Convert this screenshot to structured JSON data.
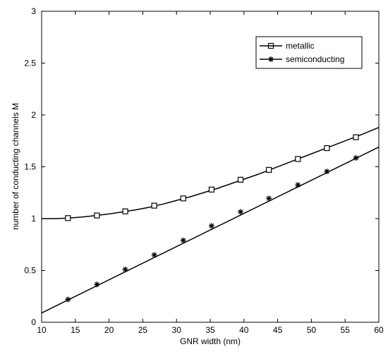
{
  "chart_data": {
    "type": "line",
    "title": "",
    "xlabel": "GNR width (nm)",
    "ylabel": "number of conducting channels  M",
    "xlim": [
      10,
      60
    ],
    "ylim": [
      0,
      3
    ],
    "xticks": [
      10,
      15,
      20,
      25,
      30,
      35,
      40,
      45,
      50,
      55,
      60
    ],
    "yticks": [
      0,
      0.5,
      1,
      1.5,
      2,
      2.5,
      3
    ],
    "xtick_labels": [
      "10",
      "15",
      "20",
      "25",
      "30",
      "35",
      "40",
      "45",
      "50",
      "55",
      "60"
    ],
    "ytick_labels": [
      "0",
      "0.5",
      "1",
      "1.5",
      "2",
      "2.5",
      "3"
    ],
    "grid": false,
    "legend_position": "top-right",
    "series": [
      {
        "name": "metallic",
        "marker": "square",
        "color": "#000000",
        "line": [
          [
            10,
            1.0
          ],
          [
            12,
            1.0
          ],
          [
            14,
            1.005
          ],
          [
            16,
            1.015
          ],
          [
            18,
            1.03
          ],
          [
            20,
            1.045
          ],
          [
            22,
            1.065
          ],
          [
            24,
            1.085
          ],
          [
            26,
            1.11
          ],
          [
            28,
            1.14
          ],
          [
            30,
            1.175
          ],
          [
            32,
            1.21
          ],
          [
            34,
            1.25
          ],
          [
            36,
            1.29
          ],
          [
            38,
            1.335
          ],
          [
            40,
            1.38
          ],
          [
            42,
            1.425
          ],
          [
            44,
            1.475
          ],
          [
            46,
            1.525
          ],
          [
            48,
            1.575
          ],
          [
            50,
            1.625
          ],
          [
            52,
            1.675
          ],
          [
            54,
            1.725
          ],
          [
            56,
            1.775
          ],
          [
            58,
            1.825
          ],
          [
            60,
            1.88
          ]
        ],
        "markers": [
          [
            13.9,
            1.005
          ],
          [
            18.2,
            1.03
          ],
          [
            22.4,
            1.07
          ],
          [
            26.7,
            1.125
          ],
          [
            31.0,
            1.195
          ],
          [
            35.2,
            1.28
          ],
          [
            39.5,
            1.375
          ],
          [
            43.7,
            1.47
          ],
          [
            48.0,
            1.575
          ],
          [
            52.3,
            1.68
          ],
          [
            56.6,
            1.785
          ]
        ]
      },
      {
        "name": "semiconducting",
        "marker": "star",
        "color": "#000000",
        "line": [
          [
            10,
            0.09
          ],
          [
            60,
            1.69
          ]
        ],
        "markers": [
          [
            13.9,
            0.22
          ],
          [
            18.2,
            0.365
          ],
          [
            22.4,
            0.51
          ],
          [
            26.7,
            0.65
          ],
          [
            31.0,
            0.79
          ],
          [
            35.2,
            0.93
          ],
          [
            39.5,
            1.065
          ],
          [
            43.7,
            1.195
          ],
          [
            48.0,
            1.325
          ],
          [
            52.3,
            1.455
          ],
          [
            56.6,
            1.585
          ]
        ]
      }
    ]
  }
}
